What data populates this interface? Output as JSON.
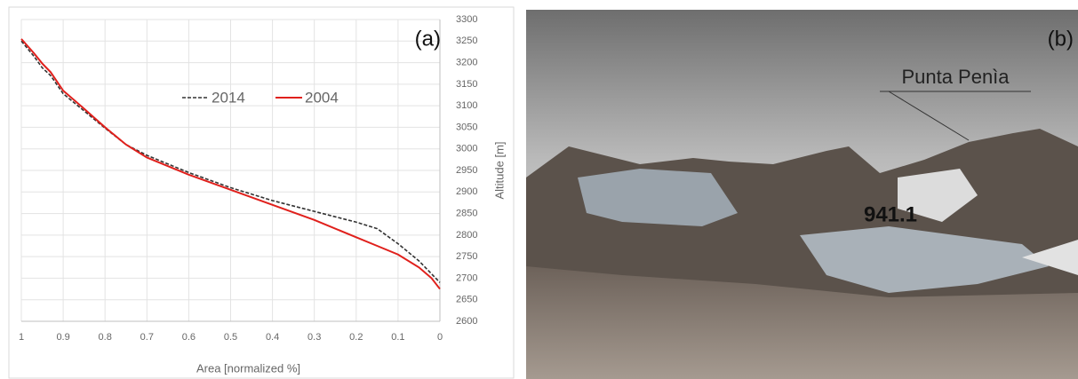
{
  "chart_data": {
    "type": "line",
    "panel_label": "(a)",
    "x_label": "Area [normalized %]",
    "y_label": "Altitude [m]",
    "x": [
      1,
      0.97,
      0.95,
      0.93,
      0.9,
      0.85,
      0.8,
      0.75,
      0.7,
      0.6,
      0.5,
      0.4,
      0.3,
      0.2,
      0.15,
      0.1,
      0.05,
      0.02,
      0
    ],
    "series": [
      {
        "name": "2014",
        "color": "#333333",
        "dashed": true,
        "values": [
          3250,
          3215,
          3188,
          3170,
          3128,
          3088,
          3048,
          3010,
          2985,
          2945,
          2910,
          2880,
          2855,
          2830,
          2815,
          2780,
          2740,
          2710,
          2690
        ]
      },
      {
        "name": "2004",
        "color": "#e0201c",
        "dashed": false,
        "values": [
          3255,
          3222,
          3198,
          3178,
          3135,
          3093,
          3050,
          3010,
          2980,
          2940,
          2905,
          2870,
          2835,
          2795,
          2775,
          2755,
          2725,
          2700,
          2675
        ]
      }
    ],
    "xlim": [
      1,
      0
    ],
    "ylim": [
      2600,
      3300
    ],
    "xticks": [
      1,
      0.9,
      0.8,
      0.7,
      0.6,
      0.5,
      0.4,
      0.3,
      0.2,
      0.1,
      0
    ],
    "yticks": [
      2600,
      2650,
      2700,
      2750,
      2800,
      2850,
      2900,
      2950,
      3000,
      3050,
      3100,
      3150,
      3200,
      3250,
      3300
    ],
    "grid": true
  },
  "photo": {
    "panel_label": "(b)",
    "peak_label": "Punta Penìa",
    "value_label": "941.1"
  }
}
